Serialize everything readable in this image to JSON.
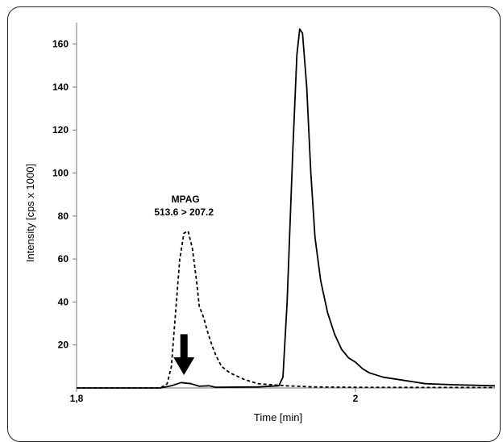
{
  "chart_data": {
    "type": "line",
    "xlabel": "Time [min]",
    "ylabel": "Intensity [cps x 1000]",
    "xlim": [
      1.8,
      2.1
    ],
    "ylim": [
      0,
      170
    ],
    "x_ticks": [
      {
        "value": 1.8,
        "label": "1,8"
      },
      {
        "value": 2.0,
        "label": "2"
      }
    ],
    "y_ticks": [
      20,
      40,
      60,
      80,
      100,
      120,
      140,
      160
    ],
    "grid": false,
    "annotation": {
      "line1": "MPAG",
      "line2": "513.6 > 207.2",
      "x": 1.877,
      "y": 80
    },
    "arrow": {
      "x": 1.877,
      "y_top": 25,
      "y_bottom": 6
    },
    "series": [
      {
        "style": "dashed",
        "points": [
          [
            1.8,
            0
          ],
          [
            1.86,
            0
          ],
          [
            1.865,
            2
          ],
          [
            1.868,
            10
          ],
          [
            1.871,
            35
          ],
          [
            1.874,
            60
          ],
          [
            1.877,
            72
          ],
          [
            1.88,
            73
          ],
          [
            1.883,
            65
          ],
          [
            1.886,
            50
          ],
          [
            1.888,
            38
          ],
          [
            1.891,
            33
          ],
          [
            1.894,
            26
          ],
          [
            1.897,
            20
          ],
          [
            1.9,
            15
          ],
          [
            1.904,
            10
          ],
          [
            1.91,
            7
          ],
          [
            1.92,
            4
          ],
          [
            1.93,
            2
          ],
          [
            1.94,
            1.5
          ],
          [
            1.95,
            1
          ],
          [
            1.97,
            0.5
          ],
          [
            2.0,
            0.3
          ],
          [
            2.1,
            0.2
          ]
        ]
      },
      {
        "style": "solid",
        "points": [
          [
            1.8,
            0
          ],
          [
            1.86,
            0
          ],
          [
            1.868,
            1
          ],
          [
            1.875,
            2.5
          ],
          [
            1.882,
            2
          ],
          [
            1.888,
            0.8
          ],
          [
            1.895,
            1
          ],
          [
            1.9,
            0.3
          ],
          [
            1.93,
            0.5
          ],
          [
            1.945,
            1
          ],
          [
            1.948,
            5
          ],
          [
            1.951,
            40
          ],
          [
            1.955,
            110
          ],
          [
            1.958,
            155
          ],
          [
            1.96,
            167
          ],
          [
            1.962,
            165
          ],
          [
            1.965,
            140
          ],
          [
            1.968,
            100
          ],
          [
            1.971,
            70
          ],
          [
            1.975,
            50
          ],
          [
            1.98,
            35
          ],
          [
            1.985,
            25
          ],
          [
            1.99,
            18
          ],
          [
            1.995,
            14
          ],
          [
            2.0,
            12
          ],
          [
            2.005,
            9
          ],
          [
            2.01,
            7
          ],
          [
            2.02,
            5
          ],
          [
            2.03,
            4
          ],
          [
            2.04,
            3
          ],
          [
            2.05,
            2
          ],
          [
            2.07,
            1.5
          ],
          [
            2.1,
            1
          ]
        ]
      }
    ]
  },
  "colors": {
    "line": "#000000",
    "axis": "#777777"
  }
}
